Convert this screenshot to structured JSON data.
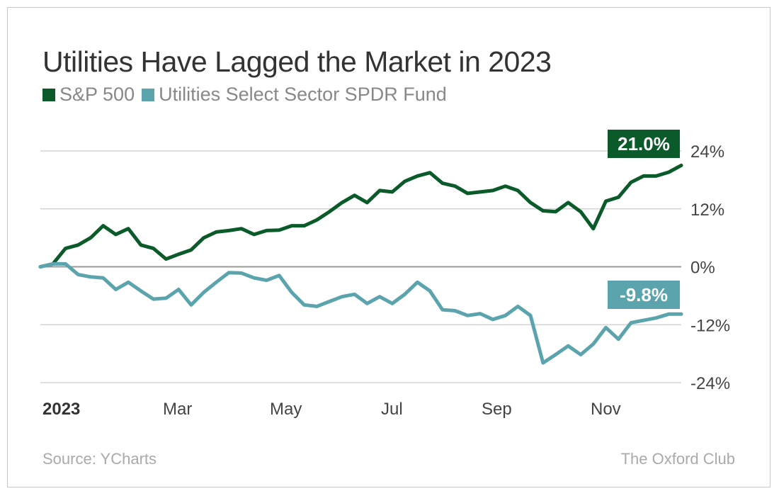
{
  "chart_data": {
    "type": "line",
    "title": "Utilities Have Lagged the Market in 2023",
    "x_tick_labels": [
      "2023",
      "Mar",
      "May",
      "Jul",
      "Sep",
      "Nov"
    ],
    "y_ticks": [
      24,
      12,
      0,
      -12,
      -24
    ],
    "y_tick_labels": [
      "24%",
      "12%",
      "0%",
      "-12%",
      "-24%"
    ],
    "ylim": [
      -24,
      24
    ],
    "grid": "horizontal",
    "legend_placement": "top-left",
    "x_start": "2023-01-03",
    "x_step_days": 7,
    "series": [
      {
        "name": "S&P 500",
        "color": "#0b5a2a",
        "end_label": "21.0%",
        "values": [
          0,
          0.6,
          3.8,
          4.5,
          6,
          8.5,
          6.7,
          7.9,
          4.5,
          3.8,
          1.6,
          2.6,
          3.5,
          6,
          7.2,
          7.5,
          7.9,
          6.7,
          7.5,
          7.6,
          8.5,
          8.5,
          9.7,
          11.4,
          13.3,
          14.8,
          13.3,
          15.8,
          15.5,
          17.7,
          18.8,
          19.5,
          17.3,
          16.7,
          15.2,
          15.5,
          15.8,
          16.7,
          15.8,
          13.3,
          11.6,
          11.4,
          13.3,
          11.4,
          7.9,
          13.6,
          14.4,
          17.5,
          18.8,
          18.8,
          19.6,
          21.0
        ]
      },
      {
        "name": "Utilities Select Sector SPDR Fund",
        "color": "#5ba4ad",
        "end_label": "-9.8%",
        "values": [
          0,
          0.6,
          0.6,
          -1.6,
          -2.1,
          -2.3,
          -4.7,
          -3.2,
          -5.0,
          -6.7,
          -6.5,
          -4.7,
          -7.9,
          -5.3,
          -3.2,
          -1.2,
          -1.3,
          -2.3,
          -2.8,
          -1.8,
          -5.3,
          -7.9,
          -8.2,
          -7.2,
          -6.2,
          -5.7,
          -7.6,
          -6.2,
          -7.6,
          -5.7,
          -3.2,
          -5.0,
          -8.9,
          -9.1,
          -10.1,
          -9.7,
          -10.9,
          -10.1,
          -8.2,
          -10.1,
          -19.9,
          -18.2,
          -16.4,
          -18.2,
          -16.0,
          -12.6,
          -15.0,
          -11.6,
          -11.1,
          -10.6,
          -9.8,
          -9.8
        ]
      }
    ]
  },
  "footer": {
    "source": "Source: YCharts",
    "brand": "The Oxford Club"
  }
}
